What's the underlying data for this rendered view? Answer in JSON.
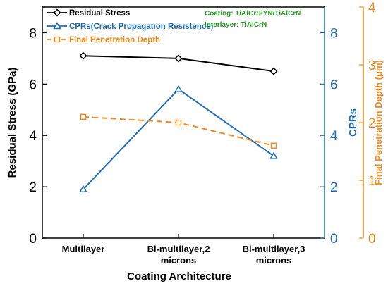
{
  "chart_data": {
    "type": "line",
    "xlabel": "Coating Architecture",
    "categories": [
      [
        "Multilayer"
      ],
      [
        "Bi-multilayer,2",
        "microns"
      ],
      [
        "Bi-multilayer,3",
        "microns"
      ]
    ],
    "axes": {
      "left": {
        "label": "Residual Stress (GPa)",
        "ylim": [
          0,
          9
        ],
        "ticks": [
          "0",
          "2",
          "4",
          "6",
          "8"
        ],
        "color": "#000000"
      },
      "mid": {
        "label": "CPRs",
        "ylim": [
          0,
          9
        ],
        "ticks": [
          "0",
          "2",
          "4",
          "6",
          "8"
        ],
        "color": "#1f6db5"
      },
      "right": {
        "label": "Final Penetration Depth (μm)",
        "ylim": [
          0,
          4
        ],
        "ticks": [
          "0",
          "1",
          "2",
          "3",
          "4"
        ],
        "color": "#f28a1d"
      }
    },
    "series": [
      {
        "name": "Residual Stress",
        "axis": "left",
        "values": [
          7.1,
          7.0,
          6.5
        ],
        "color": "#000000",
        "marker": "diamond",
        "dash": false
      },
      {
        "name": "CPRs(Crack Propagation Resistence)",
        "axis": "mid",
        "values": [
          1.9,
          5.8,
          3.2
        ],
        "color": "#1f6db5",
        "marker": "triangle",
        "dash": false
      },
      {
        "name": "Final Penetration Depth",
        "axis": "right",
        "values": [
          2.1,
          2.0,
          1.6
        ],
        "color": "#f28a1d",
        "marker": "square",
        "dash": true
      }
    ],
    "annotations": [
      {
        "text": "Coating: TiAlCrSiYN/TiAlCrN",
        "color": "#2a9b2a"
      },
      {
        "text": "Interlayer: TiAlCrN",
        "color": "#2a9b2a"
      }
    ]
  }
}
